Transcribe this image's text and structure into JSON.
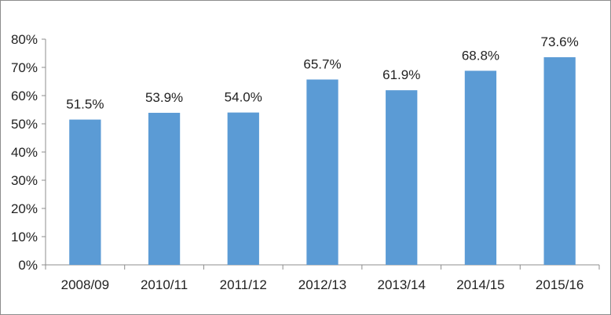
{
  "chart_data": {
    "type": "bar",
    "title": "",
    "xlabel": "",
    "ylabel": "",
    "categories": [
      "2008/09",
      "2010/11",
      "2011/12",
      "2012/13",
      "2013/14",
      "2014/15",
      "2015/16"
    ],
    "values": [
      51.5,
      53.9,
      54.0,
      65.7,
      61.9,
      68.8,
      73.6
    ],
    "data_labels": [
      "51.5%",
      "53.9%",
      "54.0%",
      "65.7%",
      "61.9%",
      "68.8%",
      "73.6%"
    ],
    "ylim": [
      0,
      80
    ],
    "yticks": [
      0,
      10,
      20,
      30,
      40,
      50,
      60,
      70,
      80
    ],
    "ytick_labels": [
      "0%",
      "10%",
      "20%",
      "30%",
      "40%",
      "50%",
      "60%",
      "70%",
      "80%"
    ],
    "grid": false,
    "legend": "none",
    "bar_color": "#5b9bd5",
    "axis_color": "#8c8c8c"
  }
}
